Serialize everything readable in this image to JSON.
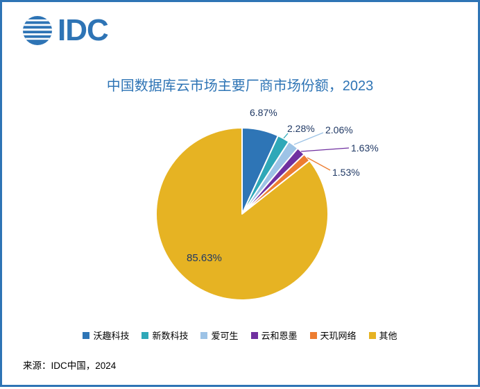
{
  "logo": {
    "text": "IDC"
  },
  "title": "中国数据库云市场主要厂商市场份额，2023",
  "source": "来源：IDC中国，2024",
  "chart_data": {
    "type": "pie",
    "title": "中国数据库云市场主要厂商市场份额，2023",
    "labels": [
      "沃趣科技",
      "新数科技",
      "爱可生",
      "云和恩墨",
      "天玑网络",
      "其他"
    ],
    "values": [
      6.87,
      2.28,
      2.06,
      1.63,
      1.53,
      85.63
    ],
    "value_labels": [
      "6.87%",
      "2.28%",
      "2.06%",
      "1.63%",
      "1.53%",
      "85.63%"
    ],
    "colors": [
      "#2E75B6",
      "#2FA8B8",
      "#9DC3E6",
      "#7030A0",
      "#ED7D31",
      "#E6B323"
    ],
    "start_angle_deg": 0,
    "direction": "clockwise",
    "legend_position": "bottom",
    "accent_color": "#2E74B5",
    "label_color": "#1F3864"
  }
}
